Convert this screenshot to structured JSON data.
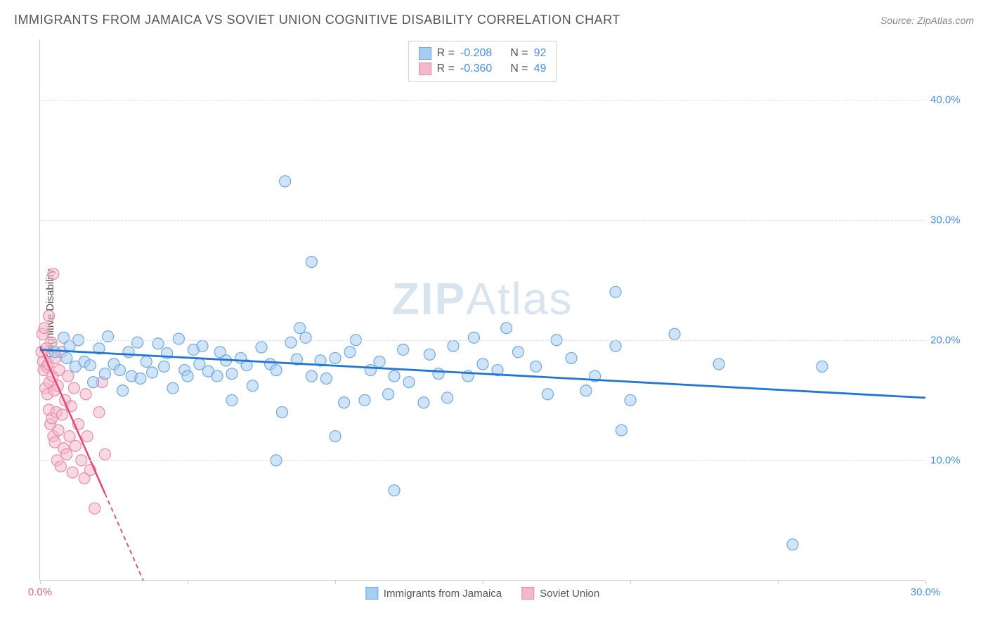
{
  "title": "IMMIGRANTS FROM JAMAICA VS SOVIET UNION COGNITIVE DISABILITY CORRELATION CHART",
  "source": "Source: ZipAtlas.com",
  "ylabel": "Cognitive Disability",
  "watermark_bold": "ZIP",
  "watermark_light": "Atlas",
  "chart": {
    "type": "scatter",
    "xlim": [
      0,
      30
    ],
    "ylim": [
      0,
      45
    ],
    "xticks": [
      0.0,
      30.0
    ],
    "xtick_labels": [
      "0.0%",
      "30.0%"
    ],
    "xtick_minor_step": 5,
    "yticks": [
      10.0,
      20.0,
      30.0,
      40.0
    ],
    "ytick_labels": [
      "10.0%",
      "20.0%",
      "30.0%",
      "40.0%"
    ],
    "grid_color": "#dddddd",
    "axis_color": "#cccccc",
    "background_color": "#ffffff",
    "tick_color_series1": "#4a90e2",
    "tick_color_series2": "#e85a8a",
    "series": [
      {
        "name": "Immigrants from Jamaica",
        "fill_color": "#a7cdf2",
        "stroke_color": "#6fa8dc",
        "line_color": "#2176d2",
        "marker_radius": 8,
        "fill_opacity": 0.55,
        "R": "-0.208",
        "N": "92",
        "regression": {
          "x1": 0,
          "y1": 19.2,
          "x2": 30,
          "y2": 15.2
        },
        "points": [
          [
            0.5,
            19.0
          ],
          [
            0.8,
            20.2
          ],
          [
            0.9,
            18.5
          ],
          [
            1.0,
            19.5
          ],
          [
            1.2,
            17.8
          ],
          [
            1.3,
            20.0
          ],
          [
            1.5,
            18.2
          ],
          [
            1.7,
            17.9
          ],
          [
            1.8,
            16.5
          ],
          [
            2.0,
            19.3
          ],
          [
            2.2,
            17.2
          ],
          [
            2.3,
            20.3
          ],
          [
            2.5,
            18.0
          ],
          [
            2.7,
            17.5
          ],
          [
            2.8,
            15.8
          ],
          [
            3.0,
            19.0
          ],
          [
            3.1,
            17.0
          ],
          [
            3.3,
            19.8
          ],
          [
            3.4,
            16.8
          ],
          [
            3.6,
            18.2
          ],
          [
            3.8,
            17.3
          ],
          [
            4.0,
            19.7
          ],
          [
            4.2,
            17.8
          ],
          [
            4.3,
            18.9
          ],
          [
            4.5,
            16.0
          ],
          [
            4.7,
            20.1
          ],
          [
            4.9,
            17.5
          ],
          [
            5.0,
            17.0
          ],
          [
            5.2,
            19.2
          ],
          [
            5.4,
            18.0
          ],
          [
            5.5,
            19.5
          ],
          [
            5.7,
            17.4
          ],
          [
            6.0,
            17.0
          ],
          [
            6.1,
            19.0
          ],
          [
            6.3,
            18.3
          ],
          [
            6.5,
            17.2
          ],
          [
            6.8,
            18.5
          ],
          [
            7.0,
            17.9
          ],
          [
            7.2,
            16.2
          ],
          [
            7.5,
            19.4
          ],
          [
            7.8,
            18.0
          ],
          [
            8.0,
            17.5
          ],
          [
            8.2,
            14.0
          ],
          [
            8.3,
            33.2
          ],
          [
            8.5,
            19.8
          ],
          [
            8.7,
            18.4
          ],
          [
            8.8,
            21.0
          ],
          [
            9.0,
            20.2
          ],
          [
            9.2,
            17.0
          ],
          [
            9.2,
            26.5
          ],
          [
            9.5,
            18.3
          ],
          [
            9.7,
            16.8
          ],
          [
            10.0,
            12.0
          ],
          [
            10.0,
            18.5
          ],
          [
            10.3,
            14.8
          ],
          [
            10.5,
            19.0
          ],
          [
            10.7,
            20.0
          ],
          [
            11.0,
            15.0
          ],
          [
            11.2,
            17.5
          ],
          [
            11.5,
            18.2
          ],
          [
            11.8,
            15.5
          ],
          [
            12.0,
            7.5
          ],
          [
            12.0,
            17.0
          ],
          [
            12.3,
            19.2
          ],
          [
            12.5,
            16.5
          ],
          [
            13.0,
            14.8
          ],
          [
            13.2,
            18.8
          ],
          [
            13.5,
            17.2
          ],
          [
            13.8,
            15.2
          ],
          [
            14.0,
            19.5
          ],
          [
            14.5,
            17.0
          ],
          [
            14.7,
            20.2
          ],
          [
            15.0,
            18.0
          ],
          [
            15.5,
            17.5
          ],
          [
            15.8,
            21.0
          ],
          [
            16.2,
            19.0
          ],
          [
            16.8,
            17.8
          ],
          [
            17.2,
            15.5
          ],
          [
            17.5,
            20.0
          ],
          [
            18.0,
            18.5
          ],
          [
            18.5,
            15.8
          ],
          [
            18.8,
            17.0
          ],
          [
            19.5,
            24.0
          ],
          [
            19.5,
            19.5
          ],
          [
            19.7,
            12.5
          ],
          [
            20.0,
            15.0
          ],
          [
            21.5,
            20.5
          ],
          [
            23.0,
            18.0
          ],
          [
            25.5,
            3.0
          ],
          [
            26.5,
            17.8
          ],
          [
            8.0,
            10.0
          ],
          [
            6.5,
            15.0
          ]
        ]
      },
      {
        "name": "Soviet Union",
        "fill_color": "#f4b8cb",
        "stroke_color": "#e88aa8",
        "line_color": "#e0457a",
        "marker_radius": 8,
        "fill_opacity": 0.55,
        "R": "-0.360",
        "N": "49",
        "regression": {
          "x1": 0,
          "y1": 19.5,
          "x2": 3.5,
          "y2": 0
        },
        "points": [
          [
            0.05,
            19.0
          ],
          [
            0.08,
            20.5
          ],
          [
            0.1,
            18.2
          ],
          [
            0.12,
            17.5
          ],
          [
            0.15,
            21.0
          ],
          [
            0.18,
            16.0
          ],
          [
            0.2,
            19.3
          ],
          [
            0.22,
            17.8
          ],
          [
            0.25,
            15.5
          ],
          [
            0.28,
            18.0
          ],
          [
            0.3,
            14.2
          ],
          [
            0.3,
            22.0
          ],
          [
            0.32,
            16.5
          ],
          [
            0.35,
            13.0
          ],
          [
            0.38,
            19.8
          ],
          [
            0.4,
            13.5
          ],
          [
            0.42,
            17.0
          ],
          [
            0.45,
            12.0
          ],
          [
            0.45,
            25.5
          ],
          [
            0.48,
            15.8
          ],
          [
            0.5,
            11.5
          ],
          [
            0.52,
            18.5
          ],
          [
            0.55,
            14.0
          ],
          [
            0.58,
            10.0
          ],
          [
            0.6,
            16.2
          ],
          [
            0.62,
            12.5
          ],
          [
            0.65,
            17.5
          ],
          [
            0.7,
            9.5
          ],
          [
            0.72,
            19.0
          ],
          [
            0.75,
            13.8
          ],
          [
            0.8,
            11.0
          ],
          [
            0.85,
            15.0
          ],
          [
            0.9,
            10.5
          ],
          [
            0.95,
            17.0
          ],
          [
            1.0,
            12.0
          ],
          [
            1.05,
            14.5
          ],
          [
            1.1,
            9.0
          ],
          [
            1.15,
            16.0
          ],
          [
            1.2,
            11.2
          ],
          [
            1.3,
            13.0
          ],
          [
            1.4,
            10.0
          ],
          [
            1.5,
            8.5
          ],
          [
            1.55,
            15.5
          ],
          [
            1.6,
            12.0
          ],
          [
            1.7,
            9.2
          ],
          [
            1.85,
            6.0
          ],
          [
            2.0,
            14.0
          ],
          [
            2.2,
            10.5
          ],
          [
            2.1,
            16.5
          ]
        ]
      }
    ]
  },
  "legend": {
    "series1_label": "Immigrants from Jamaica",
    "series2_label": "Soviet Union",
    "R_label": "R =",
    "N_label": "N ="
  }
}
